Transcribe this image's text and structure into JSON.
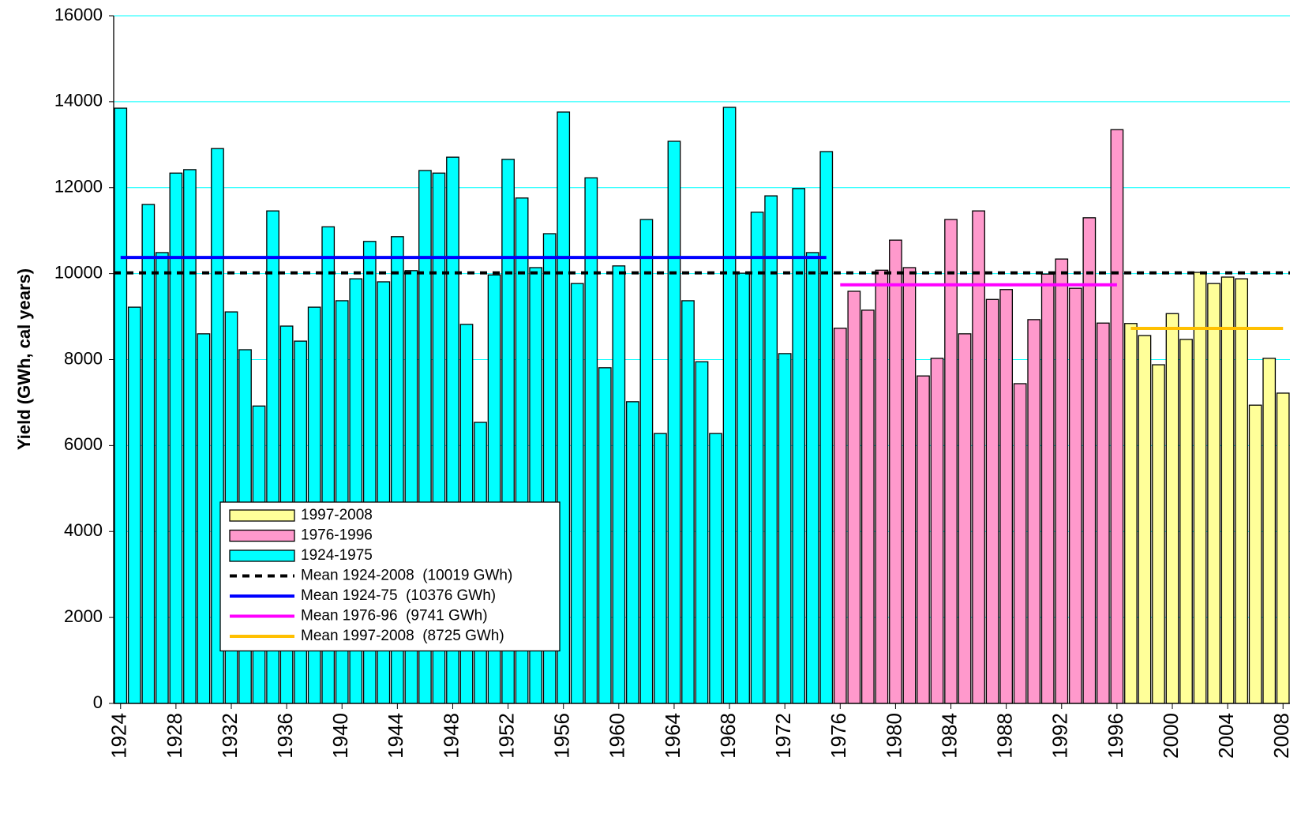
{
  "chart_data": {
    "type": "bar",
    "y_label": "Yield (GWh, cal years)",
    "x": [
      1924,
      1925,
      1926,
      1927,
      1928,
      1929,
      1930,
      1931,
      1932,
      1933,
      1934,
      1935,
      1936,
      1937,
      1938,
      1939,
      1940,
      1941,
      1942,
      1943,
      1944,
      1945,
      1946,
      1947,
      1948,
      1949,
      1950,
      1951,
      1952,
      1953,
      1954,
      1955,
      1956,
      1957,
      1958,
      1959,
      1960,
      1961,
      1962,
      1963,
      1964,
      1965,
      1966,
      1967,
      1968,
      1969,
      1970,
      1971,
      1972,
      1973,
      1974,
      1975,
      1976,
      1977,
      1978,
      1979,
      1980,
      1981,
      1982,
      1983,
      1984,
      1985,
      1986,
      1987,
      1988,
      1989,
      1990,
      1991,
      1992,
      1993,
      1994,
      1995,
      1996,
      1997,
      1998,
      1999,
      2000,
      2001,
      2002,
      2003,
      2004,
      2005,
      2006,
      2007,
      2008
    ],
    "series": [
      {
        "name": "1924-1975",
        "color": "#00ffff",
        "values": [
          13850,
          9220,
          11610,
          10490,
          12340,
          12420,
          8600,
          12910,
          9110,
          8230,
          6920,
          11460,
          8780,
          8430,
          9220,
          11090,
          9370,
          9880,
          10750,
          9810,
          10860,
          10070,
          12400,
          12340,
          12710,
          8820,
          6540,
          9970,
          12660,
          11760,
          10140,
          10930,
          13760,
          9770,
          12230,
          7810,
          10180,
          7020,
          11260,
          6280,
          13080,
          9370,
          7950,
          6280,
          13870,
          10010,
          11430,
          11810,
          8140,
          11980,
          10490,
          12840,
          null,
          null,
          null,
          null,
          null,
          null,
          null,
          null,
          null,
          null,
          null,
          null,
          null,
          null,
          null,
          null,
          null,
          null,
          null,
          null,
          null,
          null,
          null,
          null,
          null,
          null,
          null,
          null,
          null,
          null,
          null,
          null,
          null
        ]
      },
      {
        "name": "1976-1996",
        "color": "#ff99cc",
        "values": [
          null,
          null,
          null,
          null,
          null,
          null,
          null,
          null,
          null,
          null,
          null,
          null,
          null,
          null,
          null,
          null,
          null,
          null,
          null,
          null,
          null,
          null,
          null,
          null,
          null,
          null,
          null,
          null,
          null,
          null,
          null,
          null,
          null,
          null,
          null,
          null,
          null,
          null,
          null,
          null,
          null,
          null,
          null,
          null,
          null,
          null,
          null,
          null,
          null,
          null,
          null,
          null,
          8730,
          9590,
          9150,
          10080,
          10780,
          10140,
          7620,
          8030,
          11260,
          8600,
          11460,
          9400,
          9630,
          7440,
          8930,
          9990,
          10340,
          9660,
          11300,
          8850,
          13350,
          null,
          null,
          null,
          null,
          null,
          null,
          null,
          null,
          null,
          null,
          null,
          null
        ]
      },
      {
        "name": "1997-2008",
        "color": "#ffff99",
        "values": [
          null,
          null,
          null,
          null,
          null,
          null,
          null,
          null,
          null,
          null,
          null,
          null,
          null,
          null,
          null,
          null,
          null,
          null,
          null,
          null,
          null,
          null,
          null,
          null,
          null,
          null,
          null,
          null,
          null,
          null,
          null,
          null,
          null,
          null,
          null,
          null,
          null,
          null,
          null,
          null,
          null,
          null,
          null,
          null,
          null,
          null,
          null,
          null,
          null,
          null,
          null,
          null,
          null,
          null,
          null,
          null,
          null,
          null,
          null,
          null,
          null,
          null,
          null,
          null,
          null,
          null,
          null,
          null,
          null,
          null,
          null,
          null,
          null,
          8840,
          8560,
          7880,
          9070,
          8470,
          10030,
          9770,
          9920,
          9880,
          6940,
          8030,
          7220
        ]
      }
    ],
    "mean_lines": [
      {
        "name": "Mean 1924-2008  (10019 GWh)",
        "color": "#000000",
        "dashed": true,
        "x": [
          1923.5,
          2008.5
        ],
        "values": [
          10019,
          10019
        ]
      },
      {
        "name": "Mean 1924-75  (10376 GWh)",
        "color": "#0000ff",
        "dashed": false,
        "x": [
          1924,
          1975
        ],
        "values": [
          10376,
          10376
        ]
      },
      {
        "name": "Mean 1976-96  (9741 GWh)",
        "color": "#ff00ff",
        "dashed": false,
        "x": [
          1976,
          1996
        ],
        "values": [
          9741,
          9741
        ]
      },
      {
        "name": "Mean 1997-2008  (8725 GWh)",
        "color": "#ffc000",
        "dashed": false,
        "x": [
          1997,
          2008
        ],
        "values": [
          8725,
          8725
        ]
      }
    ],
    "xlim": [
      1923.5,
      2008.5
    ],
    "xticks": [
      1924,
      1928,
      1932,
      1936,
      1940,
      1944,
      1948,
      1952,
      1956,
      1960,
      1964,
      1968,
      1972,
      1976,
      1980,
      1984,
      1988,
      1992,
      1996,
      2000,
      2004,
      2008
    ],
    "ylim": [
      0,
      16000
    ],
    "yticks": [
      0,
      2000,
      4000,
      6000,
      8000,
      10000,
      12000,
      14000,
      16000
    ],
    "grid": true,
    "grid_color": "#00ffff"
  }
}
